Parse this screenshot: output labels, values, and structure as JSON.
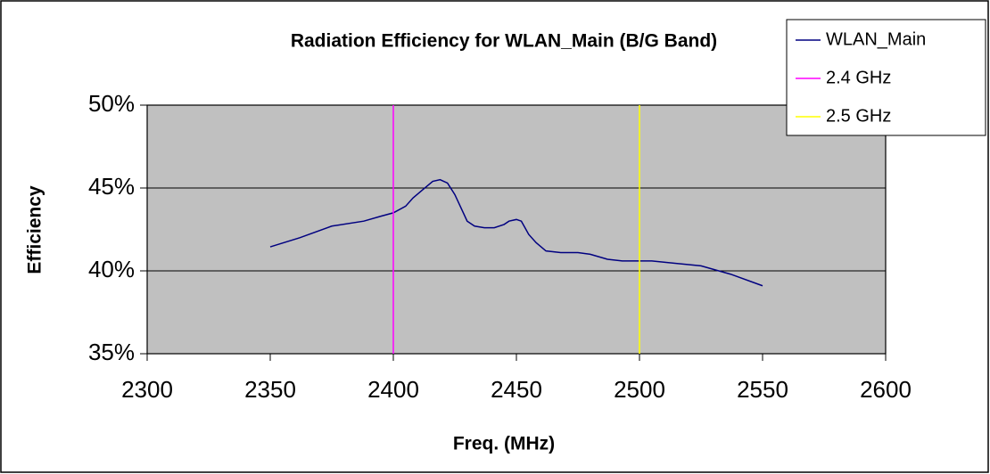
{
  "chart_data": {
    "type": "line",
    "title": "Radiation Efficiency for WLAN_Main (B/G Band)",
    "x_label": "Freq. (MHz)",
    "y_label": "Efficiency",
    "xlim": [
      2300,
      2600
    ],
    "xticks": [
      2300,
      2350,
      2400,
      2450,
      2500,
      2550,
      2600
    ],
    "ylim": [
      35,
      50
    ],
    "yticks": [
      {
        "value": 35,
        "label": "35%"
      },
      {
        "value": 40,
        "label": "40%"
      },
      {
        "value": 45,
        "label": "45%"
      },
      {
        "value": 50,
        "label": "50%"
      }
    ],
    "grid": true,
    "legend": "upper right",
    "plot_background": "#c0c0c0",
    "series": [
      {
        "name": "WLAN_Main",
        "color": "#000080",
        "x": [
          2350,
          2362,
          2375,
          2388,
          2395,
          2400,
          2405,
          2408,
          2412,
          2416,
          2419,
          2422,
          2425,
          2430,
          2433,
          2437,
          2441,
          2445,
          2447,
          2450,
          2452,
          2455,
          2458,
          2462,
          2468,
          2475,
          2480,
          2487,
          2493,
          2505,
          2525,
          2537,
          2550
        ],
        "values": [
          41.45,
          42.0,
          42.7,
          43.0,
          43.3,
          43.5,
          43.9,
          44.4,
          44.9,
          45.4,
          45.5,
          45.3,
          44.6,
          43.0,
          42.7,
          42.6,
          42.6,
          42.8,
          43.0,
          43.1,
          43.0,
          42.2,
          41.7,
          41.2,
          41.1,
          41.1,
          41.0,
          40.7,
          40.6,
          40.6,
          40.3,
          39.8,
          39.1
        ]
      },
      {
        "name": "2.4 GHz",
        "color": "#ff00ff",
        "x": [
          2400,
          2400
        ],
        "values": [
          35,
          50
        ]
      },
      {
        "name": "2.5 GHz",
        "color": "#ffff00",
        "x": [
          2500,
          2500
        ],
        "values": [
          35,
          50
        ]
      }
    ]
  }
}
